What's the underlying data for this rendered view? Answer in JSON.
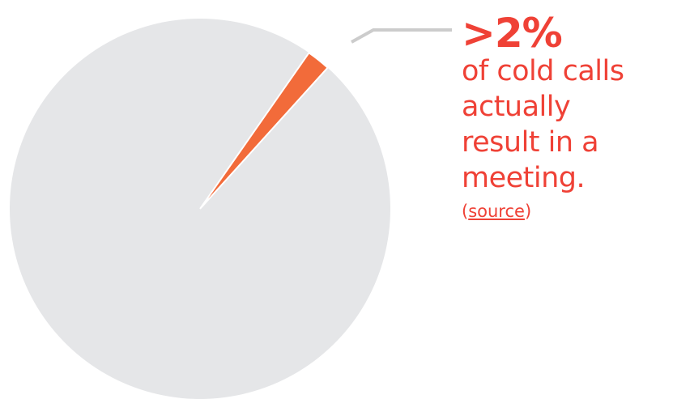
{
  "chart_data": {
    "type": "pie",
    "slices": [
      {
        "value": 2,
        "color": "#f26b3a"
      },
      {
        "value": 98,
        "color": "#e5e6e8"
      }
    ],
    "callout_color": "#ef4136",
    "leader_line_color": "#cccccc"
  },
  "callout": {
    "stat": ">2%",
    "lines": [
      "of cold calls",
      "actually",
      "result in a",
      "meeting."
    ],
    "source_open": "(",
    "source_link": "source",
    "source_close": ")"
  }
}
